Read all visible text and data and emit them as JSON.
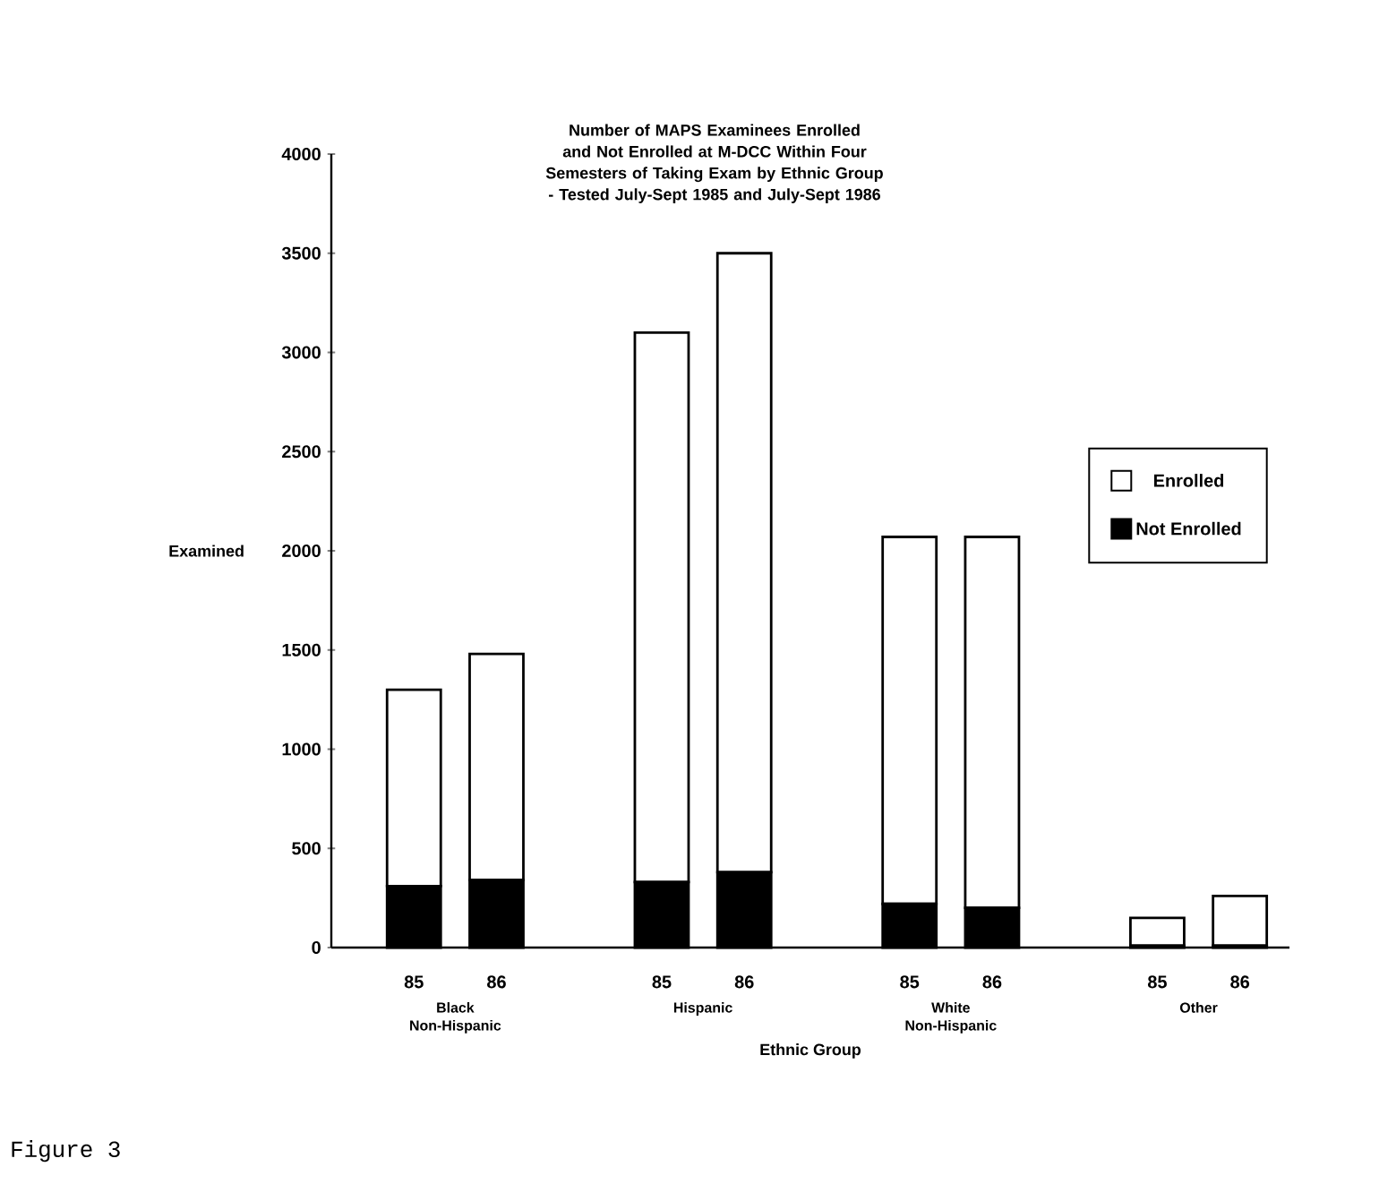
{
  "chart_data": {
    "type": "bar",
    "stacked": true,
    "title": "Number of MAPS Examinees Enrolled and Not Enrolled at M-DCC Within Four Semesters of Taking Exam by Ethnic Group - Tested July-Sept 1985 and July-Sept 1986",
    "xlabel": "Ethnic Group",
    "ylabel": "Examined",
    "categories": [
      "85",
      "86",
      "85",
      "86",
      "85",
      "86",
      "85",
      "86"
    ],
    "series": [
      {
        "name": "Not Enrolled",
        "color": "#000000",
        "values": [
          310,
          340,
          330,
          380,
          220,
          200,
          10,
          10
        ]
      },
      {
        "name": "Enrolled",
        "color": "#ffffff",
        "values": [
          990,
          1140,
          2770,
          3120,
          1850,
          1870,
          140,
          250
        ]
      }
    ],
    "ylim": [
      0,
      4000
    ],
    "yticks": [
      0,
      500,
      1000,
      1500,
      2000,
      2500,
      3000,
      3500,
      4000
    ],
    "legend": "right",
    "grid": false,
    "annotations": [
      "Black Non-Hispanic",
      "Hispanic",
      "White Non-Hispanic",
      "Other",
      "Figure 3"
    ]
  }
}
